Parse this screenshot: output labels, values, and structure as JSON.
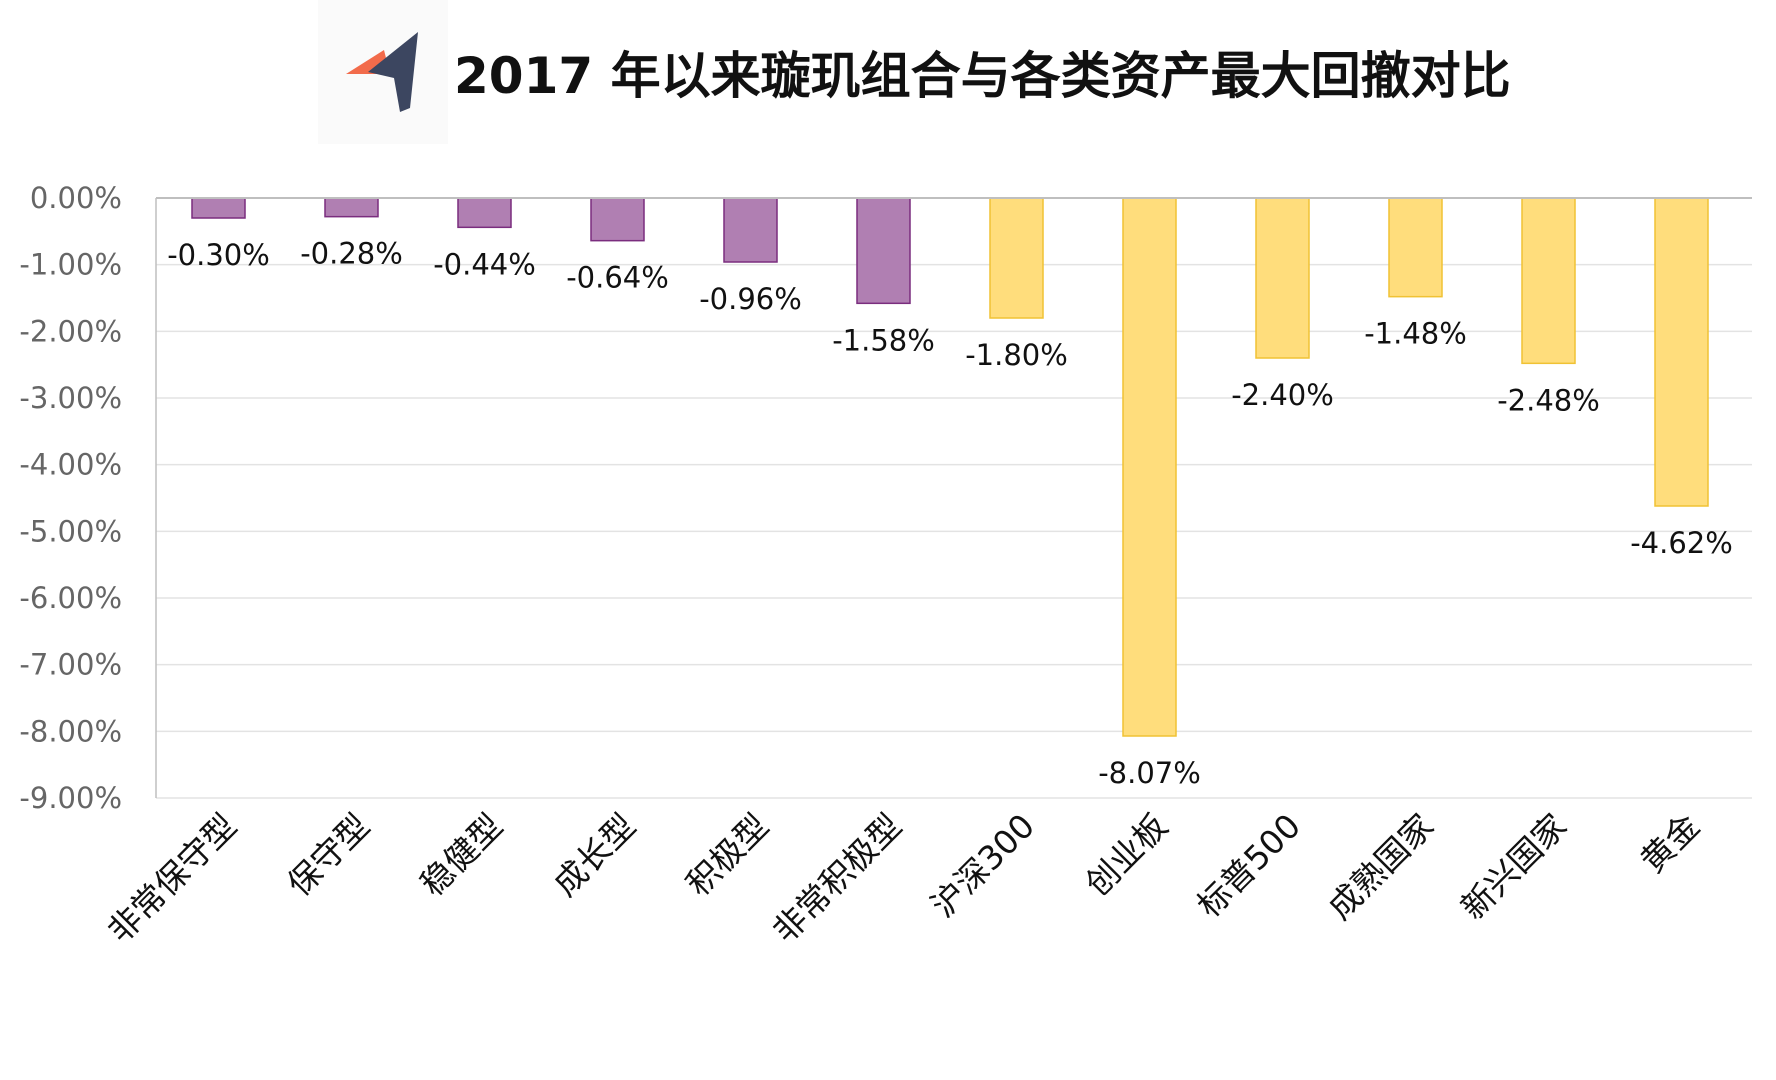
{
  "header": {
    "title": "2017 年以来璇玑组合与各类资产最大回撤对比",
    "logo_icon": "navigation-arrow-logo-icon"
  },
  "colors": {
    "purple_fill": "#b07fb2",
    "purple_stroke": "#7a2d7e",
    "yellow_fill": "#ffdd7c",
    "yellow_stroke": "#f0c234",
    "logo_dark": "#3c4660",
    "logo_orange": "#f26b4b"
  },
  "chart_data": {
    "type": "bar",
    "title": "2017 年以来璇玑组合与各类资产最大回撤对比",
    "xlabel": "",
    "ylabel": "",
    "ylim": [
      -9,
      0
    ],
    "yticks": [
      "0.00%",
      "-1.00%",
      "-2.00%",
      "-3.00%",
      "-4.00%",
      "-5.00%",
      "-6.00%",
      "-7.00%",
      "-8.00%",
      "-9.00%"
    ],
    "grid": true,
    "categories": [
      "非常保守型",
      "保守型",
      "稳健型",
      "成长型",
      "积极型",
      "非常积极型",
      "沪深300",
      "创业板",
      "标普500",
      "成熟国家",
      "新兴国家",
      "黄金"
    ],
    "values": [
      -0.3,
      -0.28,
      -0.44,
      -0.64,
      -0.96,
      -1.58,
      -1.8,
      -8.07,
      -2.4,
      -1.48,
      -2.48,
      -4.62
    ],
    "labels": [
      "-0.30%",
      "-0.28%",
      "-0.44%",
      "-0.64%",
      "-0.96%",
      "-1.58%",
      "-1.80%",
      "-8.07%",
      "-2.40%",
      "-1.48%",
      "-2.48%",
      "-4.62%"
    ],
    "groups": [
      "portfolio",
      "portfolio",
      "portfolio",
      "portfolio",
      "portfolio",
      "portfolio",
      "asset",
      "asset",
      "asset",
      "asset",
      "asset",
      "asset"
    ]
  }
}
